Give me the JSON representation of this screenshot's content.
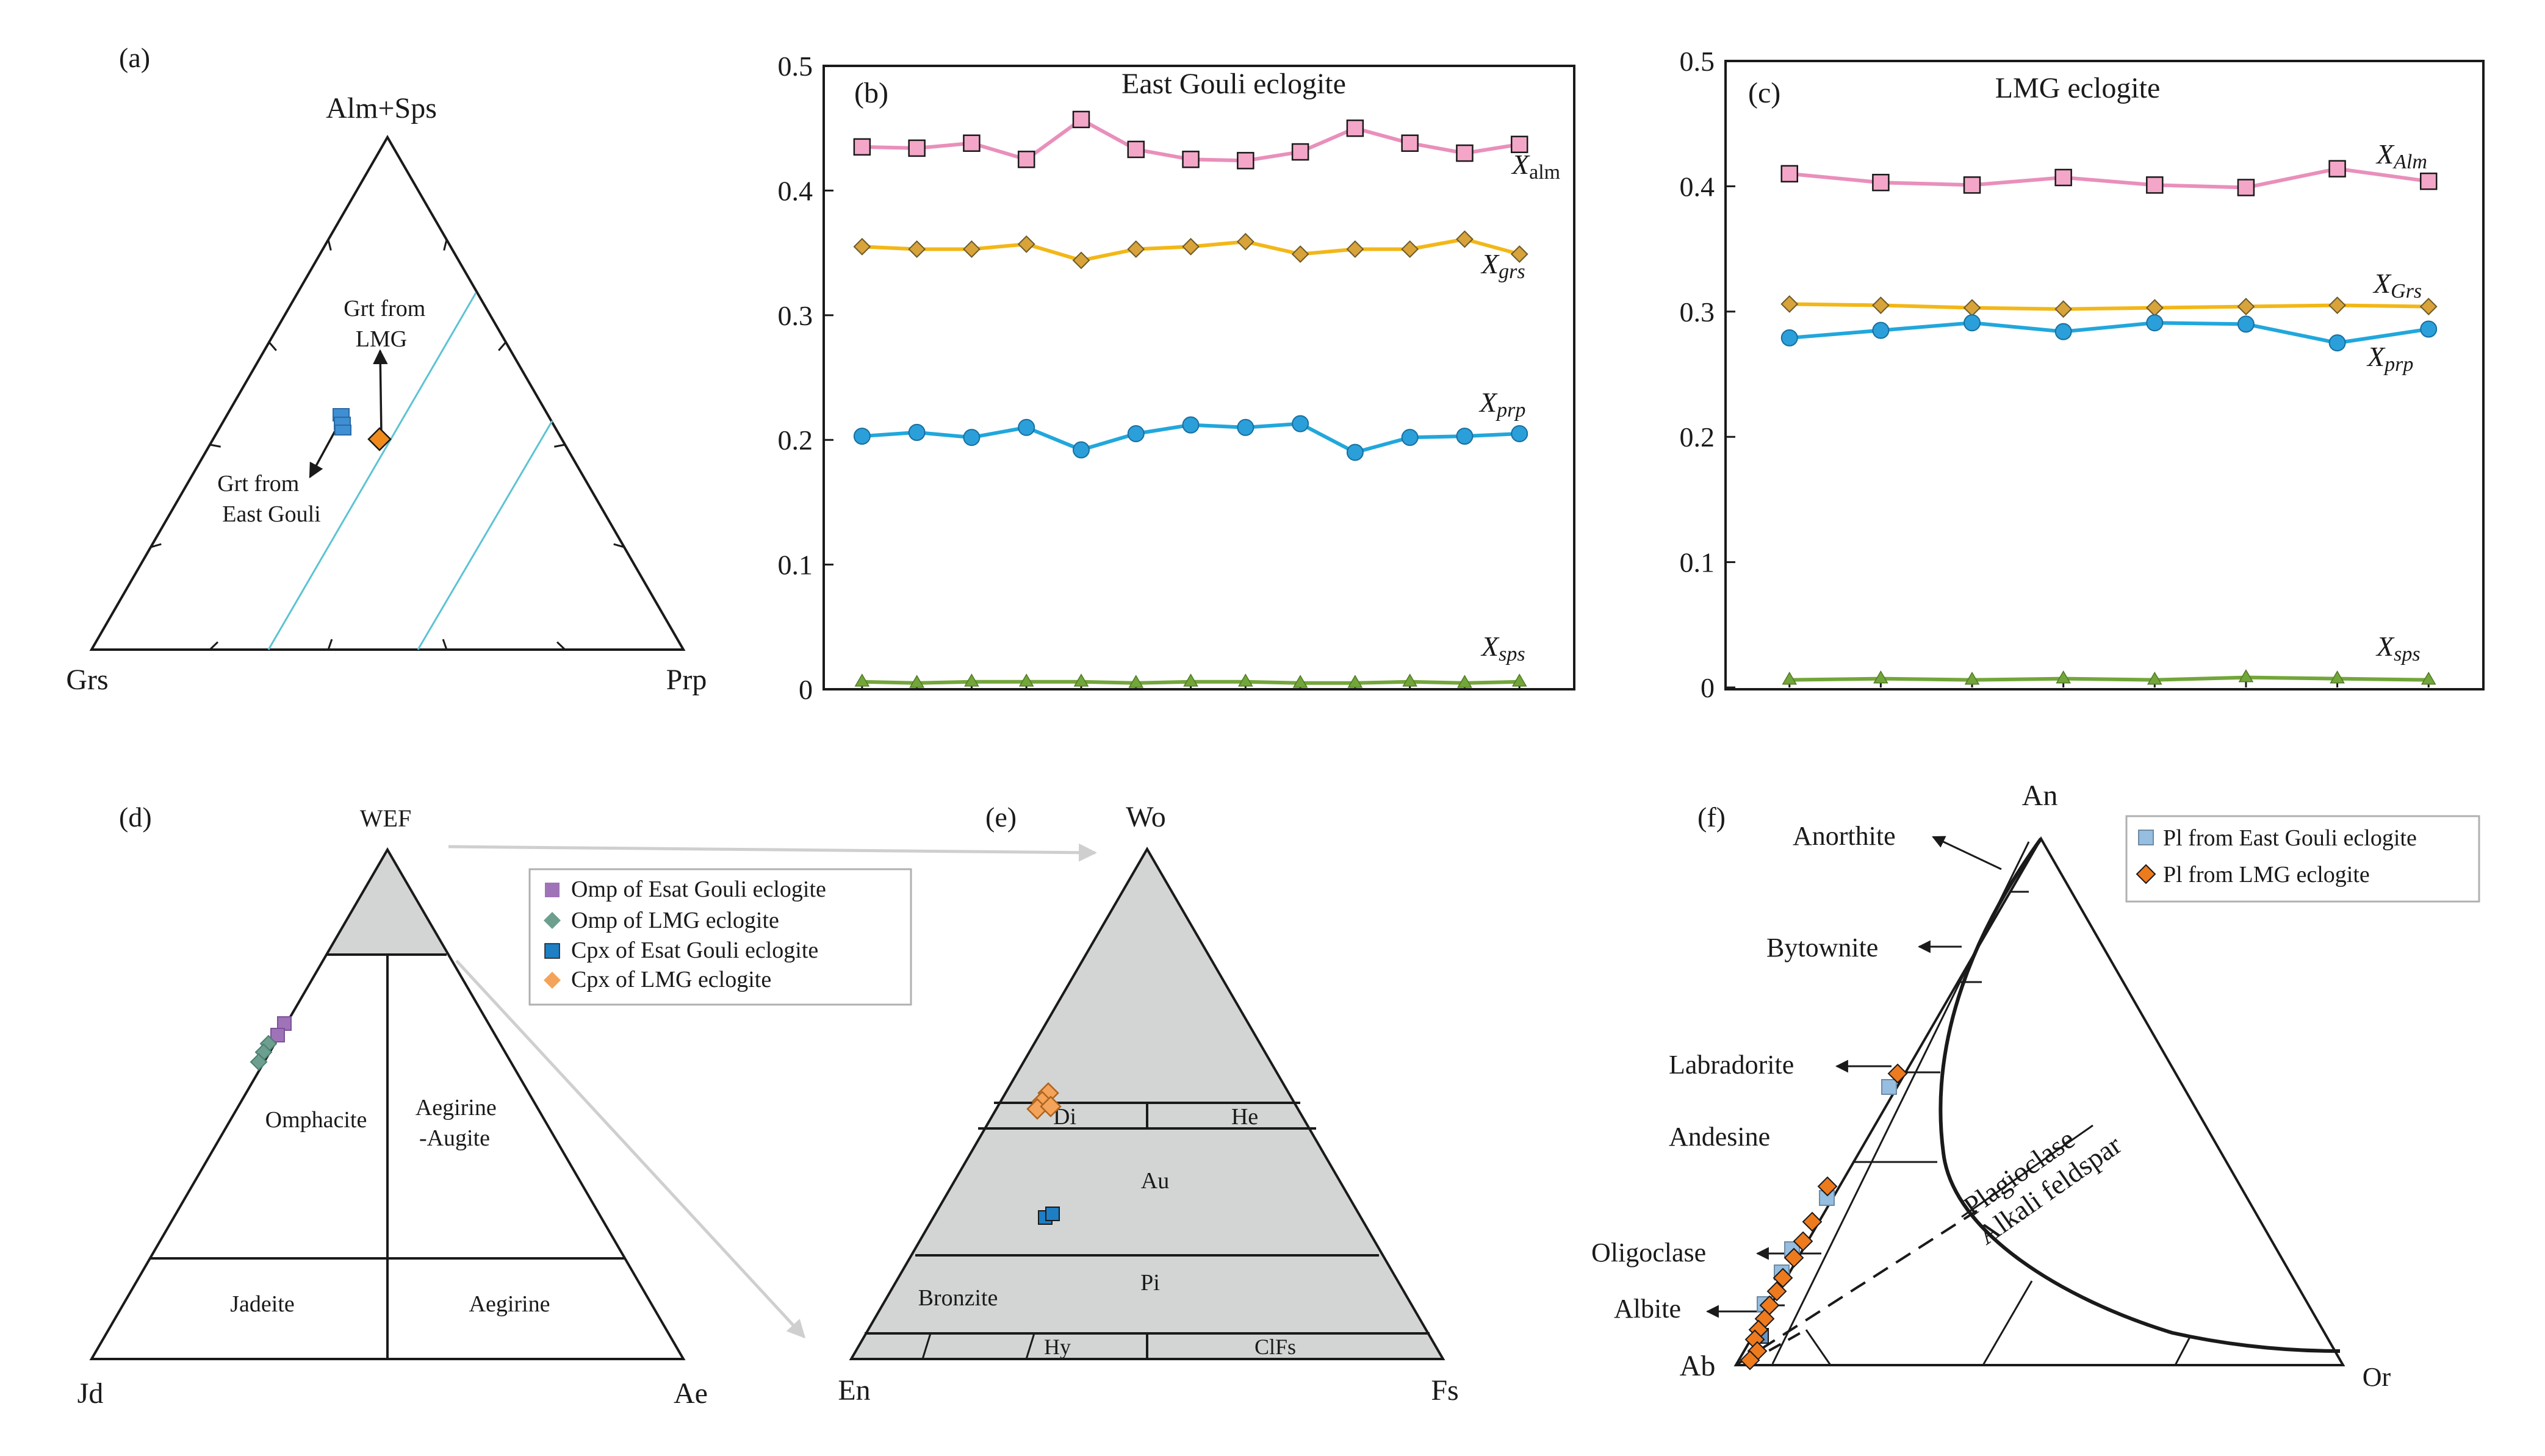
{
  "colors": {
    "alm": "#e98fbb",
    "alm_face": "#f3a6c8",
    "grs": "#f2b718",
    "grs_face": "#d8a33a",
    "prp": "#21a7dc",
    "prp_face": "#2b9fd9",
    "sps": "#73a63a",
    "grt_eg": "#3f8fd2",
    "grt_lmg": "#f08a1c",
    "omp_eg": "#9f73b8",
    "omp_lmg": "#6c9f8f",
    "cpx_eg": "#1e7fc4",
    "cpx_lmg": "#f3a45a",
    "pl_eg": "#95bee0",
    "pl_lmg": "#ee7a1e",
    "field_gray": "#d3d4d4",
    "guide_line": "#5cc3d4",
    "arrow_gray": "#cfcfcf"
  },
  "panel_a": {
    "label": "(a)",
    "apex_top": "Alm+Sps",
    "apex_left": "Grs",
    "apex_right": "Prp",
    "annot_lmg": "Grt from\nLMG",
    "annot_eg": "Grt from\nEast Gouli"
  },
  "chart_data": [
    {
      "id": "b",
      "type": "line",
      "label": "(b)",
      "title": "East Gouli eclogite",
      "x": [
        1,
        2,
        3,
        4,
        5,
        6,
        7,
        8,
        9,
        10,
        11,
        12,
        13
      ],
      "xlim": [
        0.3,
        14.0
      ],
      "ylim": [
        0,
        0.5
      ],
      "yticks": [
        0,
        0.1,
        0.2,
        0.3,
        0.4,
        0.5
      ],
      "yticklabels": [
        "0",
        "0.1",
        "0.2",
        "0.3",
        "0.4",
        "0.5"
      ],
      "grid": false,
      "series": [
        {
          "name": "Xalm",
          "marker": "square",
          "values": [
            0.435,
            0.434,
            0.438,
            0.425,
            0.457,
            0.433,
            0.425,
            0.424,
            0.431,
            0.45,
            0.438,
            0.43,
            0.437
          ]
        },
        {
          "name": "Xgrs",
          "marker": "diamond",
          "values": [
            0.355,
            0.353,
            0.353,
            0.357,
            0.344,
            0.353,
            0.355,
            0.359,
            0.349,
            0.353,
            0.353,
            0.361,
            0.349
          ]
        },
        {
          "name": "Xprp",
          "marker": "circle",
          "values": [
            0.203,
            0.206,
            0.202,
            0.21,
            0.192,
            0.205,
            0.212,
            0.21,
            0.213,
            0.19,
            0.202,
            0.203,
            0.205
          ]
        },
        {
          "name": "Xsps",
          "marker": "triangle",
          "values": [
            0.006,
            0.005,
            0.006,
            0.006,
            0.006,
            0.005,
            0.006,
            0.006,
            0.005,
            0.005,
            0.006,
            0.005,
            0.006
          ]
        }
      ]
    },
    {
      "id": "c",
      "type": "line",
      "label": "(c)",
      "title": "LMG eclogite",
      "x": [
        1,
        2,
        3,
        4,
        5,
        6,
        7,
        8
      ],
      "xlim": [
        0.3,
        8.6
      ],
      "ylim": [
        0,
        0.5
      ],
      "yticks": [
        0,
        0.1,
        0.2,
        0.3,
        0.4,
        0.5
      ],
      "yticklabels": [
        "0",
        "0.1",
        "0.2",
        "0.3",
        "0.4",
        "0.5"
      ],
      "grid": false,
      "series": [
        {
          "name": "XAlm",
          "marker": "square",
          "values": [
            0.41,
            0.403,
            0.401,
            0.407,
            0.401,
            0.399,
            0.414,
            0.404
          ]
        },
        {
          "name": "XGrs",
          "marker": "diamond",
          "values": [
            0.306,
            0.305,
            0.303,
            0.302,
            0.303,
            0.304,
            0.305,
            0.304
          ]
        },
        {
          "name": "Xprp",
          "marker": "circle",
          "values": [
            0.279,
            0.285,
            0.291,
            0.284,
            0.291,
            0.29,
            0.275,
            0.286
          ]
        },
        {
          "name": "Xsps",
          "marker": "triangle",
          "values": [
            0.006,
            0.007,
            0.006,
            0.007,
            0.006,
            0.008,
            0.007,
            0.006
          ]
        }
      ]
    }
  ],
  "panel_d": {
    "label": "(d)",
    "apex_top": "WEF",
    "apex_left": "Jd",
    "apex_right": "Ae",
    "fields": {
      "omphacite": "Omphacite",
      "aegirine_augite": "Aegirine\n-Augite",
      "jadeite": "Jadeite",
      "aegirine": "Aegirine"
    },
    "legend": [
      "Omp of Esat Gouli eclogite",
      "Omp of LMG eclogite",
      "Cpx of Esat Gouli eclogite",
      "Cpx of LMG eclogite"
    ]
  },
  "panel_e": {
    "label": "(e)",
    "apex_top": "Wo",
    "apex_left": "En",
    "apex_right": "Fs",
    "fields": {
      "di": "Di",
      "he": "He",
      "au": "Au",
      "pi": "Pi",
      "bronzite": "Bronzite",
      "hy": "Hy",
      "clfs": "ClFs"
    }
  },
  "panel_f": {
    "label": "(f)",
    "apex_top": "An",
    "apex_left": "Ab",
    "apex_right": "Or",
    "minerals": [
      "Anorthite",
      "Bytownite",
      "Labradorite",
      "Andesine",
      "Oligoclase",
      "Albite"
    ],
    "field_top": "Plagioclase",
    "field_bottom": "Alkali feldspar",
    "legend": [
      "Pl from East Gouli eclogite",
      "Pl from LMG eclogite"
    ]
  }
}
